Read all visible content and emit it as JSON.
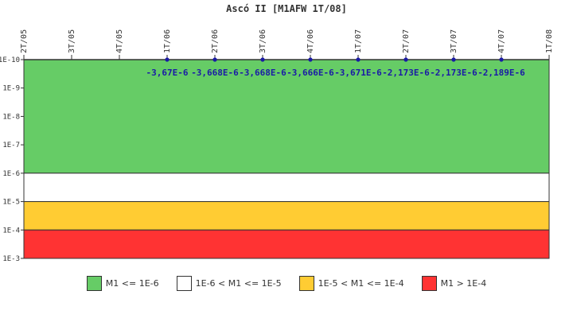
{
  "chart_data": {
    "type": "line",
    "title": "Ascó II [M1AFW 1T/08]",
    "categories": [
      "2T/05",
      "3T/05",
      "4T/05",
      "1T/06",
      "2T/06",
      "3T/06",
      "4T/06",
      "1T/07",
      "2T/07",
      "3T/07",
      "4T/07",
      "1T/08"
    ],
    "y_scale": "log",
    "y_axis_reversed": true,
    "yticks": [
      "1E-10",
      "1E-9",
      "1E-8",
      "1E-7",
      "1E-6",
      "1E-5",
      "1E-4",
      "1E-3"
    ],
    "series": [
      {
        "name": "M1AFW",
        "color": "#1a1aa6",
        "points": [
          {
            "x": "1T/06",
            "y": 1e-10,
            "label": "-3,67E-6"
          },
          {
            "x": "2T/06",
            "y": 1e-10,
            "label": "-3,668E-6"
          },
          {
            "x": "3T/06",
            "y": 1e-10,
            "label": "-3,668E-6"
          },
          {
            "x": "4T/06",
            "y": 1e-10,
            "label": "-3,666E-6"
          },
          {
            "x": "1T/07",
            "y": 1e-10,
            "label": "-3,671E-6"
          },
          {
            "x": "2T/07",
            "y": 1e-10,
            "label": "-2,173E-6"
          },
          {
            "x": "3T/07",
            "y": 1e-10,
            "label": "-2,173E-6"
          },
          {
            "x": "4T/07",
            "y": 1e-10,
            "label": "-2,189E-6"
          }
        ]
      }
    ],
    "bands": [
      {
        "from": 1e-10,
        "to": 1e-06,
        "color": "#66cc66",
        "label": "M1 <= 1E-6"
      },
      {
        "from": 1e-06,
        "to": 1e-05,
        "color": "#ffffff",
        "label": "1E-6 < M1 <= 1E-5"
      },
      {
        "from": 1e-05,
        "to": 0.0001,
        "color": "#ffcc33",
        "label": "1E-5 < M1 <= 1E-4"
      },
      {
        "from": 0.0001,
        "to": 0.001,
        "color": "#ff3333",
        "label": "M1 > 1E-4"
      }
    ],
    "legend_position": "bottom"
  }
}
